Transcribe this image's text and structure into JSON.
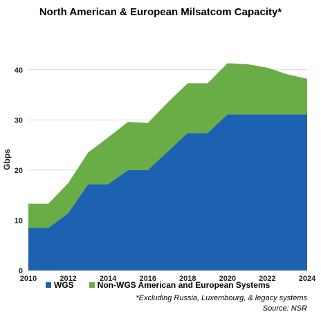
{
  "chart_data": {
    "type": "area",
    "stacked": true,
    "title": "North American & European Milsatcom Capacity*",
    "ylabel": "Gbps",
    "xlabel": "",
    "x": [
      2010,
      2011,
      2012,
      2013,
      2014,
      2015,
      2016,
      2017,
      2018,
      2019,
      2020,
      2021,
      2022,
      2023,
      2024
    ],
    "xticks": [
      2010,
      2012,
      2014,
      2016,
      2018,
      2020,
      2022,
      2024
    ],
    "yticks": [
      0,
      10,
      20,
      30,
      40
    ],
    "xlim": [
      2010,
      2024
    ],
    "ylim": [
      0,
      47
    ],
    "grid": "horizontal",
    "legend_position": "bottom",
    "series": [
      {
        "name": "WGS",
        "color": "#1c62b0",
        "values": [
          8.5,
          8.5,
          11.4,
          17.2,
          17.2,
          20.0,
          20.0,
          23.7,
          27.4,
          27.4,
          31.1,
          31.1,
          31.1,
          31.1,
          31.1
        ]
      },
      {
        "name": "Non-WGS American and European Systems",
        "color": "#6aac45",
        "values": [
          4.8,
          4.8,
          6.0,
          6.3,
          9.3,
          9.6,
          9.4,
          9.8,
          9.9,
          9.9,
          10.2,
          10.0,
          9.3,
          8.0,
          7.1
        ]
      }
    ],
    "footnote": "*Excluding Russia, Luxembourg, & legacy systems",
    "source": "Source: NSR"
  }
}
